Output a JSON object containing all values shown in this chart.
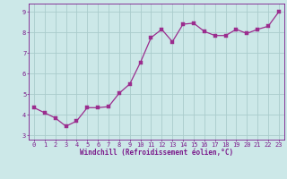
{
  "x": [
    0,
    1,
    2,
    3,
    4,
    5,
    6,
    7,
    8,
    9,
    10,
    11,
    12,
    13,
    14,
    15,
    16,
    17,
    18,
    19,
    20,
    21,
    22,
    23
  ],
  "y": [
    4.35,
    4.1,
    3.85,
    3.45,
    3.7,
    4.35,
    4.35,
    4.4,
    5.05,
    5.5,
    6.55,
    7.75,
    8.15,
    7.55,
    8.4,
    8.45,
    8.05,
    7.85,
    7.85,
    8.15,
    7.95,
    8.15,
    8.3,
    9.0
  ],
  "line_color": "#9b2d8e",
  "marker_color": "#9b2d8e",
  "bg_color": "#cce8e8",
  "grid_color": "#aacccc",
  "axis_label_color": "#7b1a8b",
  "tick_color": "#7b1a8b",
  "xlabel": "Windchill (Refroidissement éolien,°C)",
  "ylabel": "",
  "xlim": [
    -0.5,
    23.5
  ],
  "ylim": [
    2.8,
    9.4
  ],
  "yticks": [
    3,
    4,
    5,
    6,
    7,
    8,
    9
  ],
  "xticks": [
    0,
    1,
    2,
    3,
    4,
    5,
    6,
    7,
    8,
    9,
    10,
    11,
    12,
    13,
    14,
    15,
    16,
    17,
    18,
    19,
    20,
    21,
    22,
    23
  ],
  "font_family": "monospace",
  "label_fontsize": 5.5,
  "tick_fontsize": 5.0,
  "linewidth": 0.9,
  "markersize": 2.2
}
